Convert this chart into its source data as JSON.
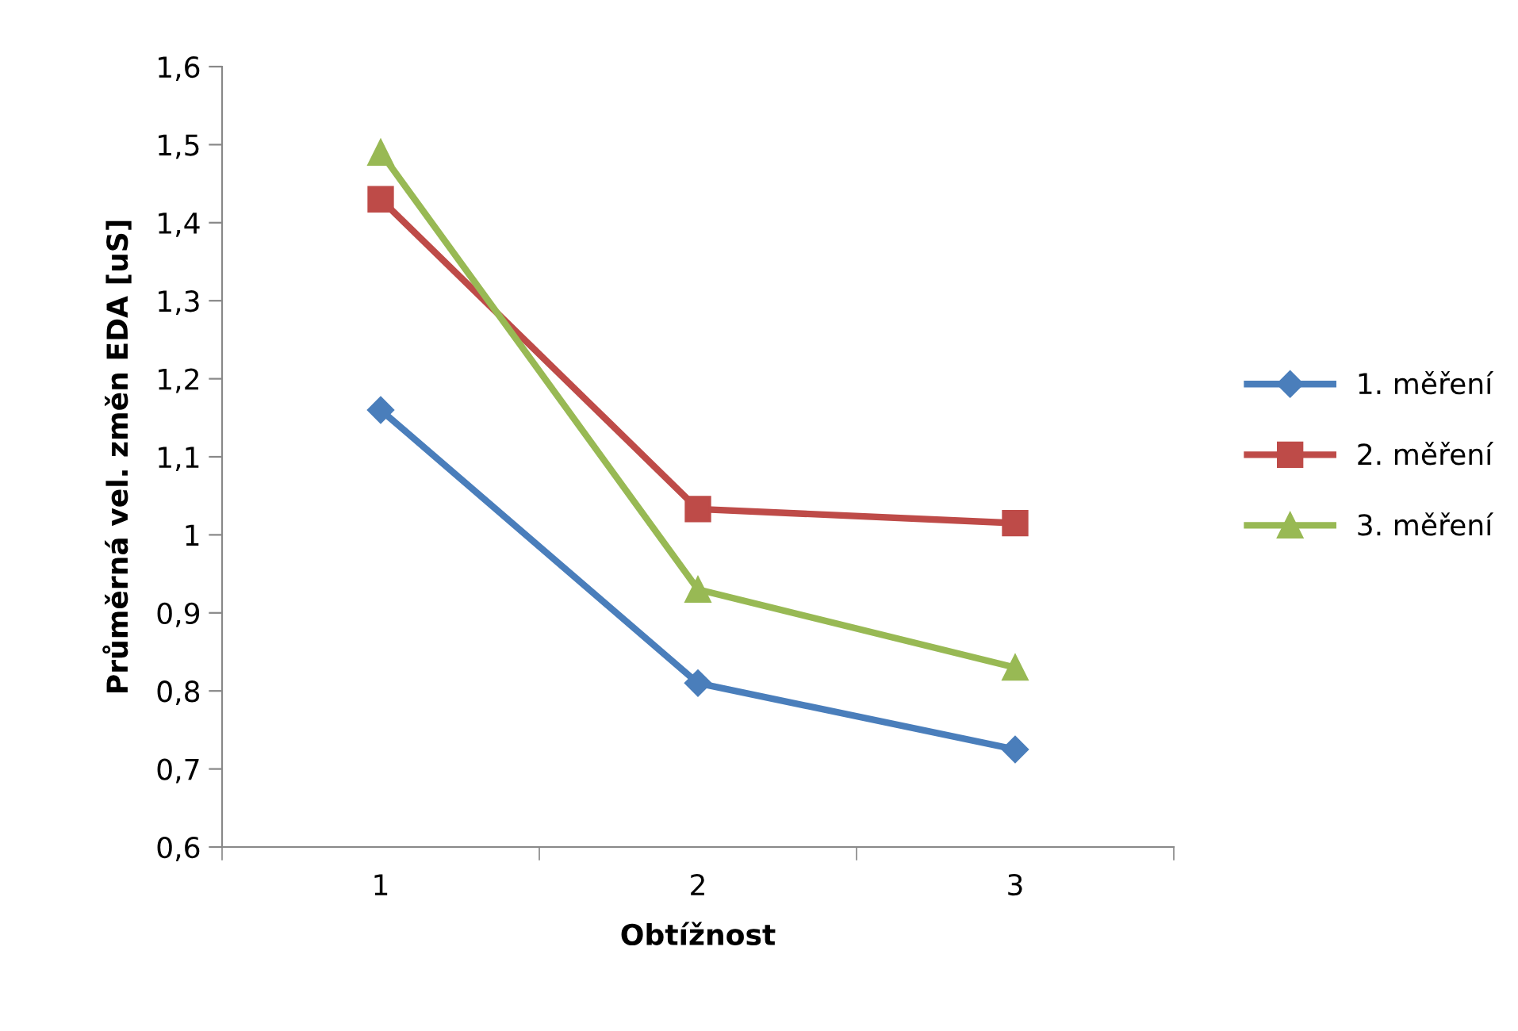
{
  "chart_data": {
    "type": "line",
    "xlabel": "Obtížnost",
    "ylabel": "Průměrná vel. změn EDA [uS]",
    "categories": [
      "1",
      "2",
      "3"
    ],
    "series": [
      {
        "name": "1. měření",
        "color": "#4a7ebb",
        "marker": "diamond",
        "values": [
          1.16,
          0.81,
          0.725
        ]
      },
      {
        "name": "2. měření",
        "color": "#be4b48",
        "marker": "square",
        "values": [
          1.43,
          1.033,
          1.015
        ]
      },
      {
        "name": "3. měření",
        "color": "#98b954",
        "marker": "triangle",
        "values": [
          1.49,
          0.93,
          0.83
        ]
      }
    ],
    "ylim": [
      0.6,
      1.6
    ],
    "yticks": [
      {
        "value": 0.6,
        "label": "0,6"
      },
      {
        "value": 0.7,
        "label": "0,7"
      },
      {
        "value": 0.8,
        "label": "0,8"
      },
      {
        "value": 0.9,
        "label": "0,9"
      },
      {
        "value": 1,
        "label": "1"
      },
      {
        "value": 1.1,
        "label": "1,1"
      },
      {
        "value": 1.2,
        "label": "1,2"
      },
      {
        "value": 1.3,
        "label": "1,3"
      },
      {
        "value": 1.4,
        "label": "1,4"
      },
      {
        "value": 1.5,
        "label": "1,5"
      },
      {
        "value": 1.6,
        "label": "1,6"
      }
    ],
    "grid": false,
    "legend": "right",
    "line_style": "solid"
  }
}
